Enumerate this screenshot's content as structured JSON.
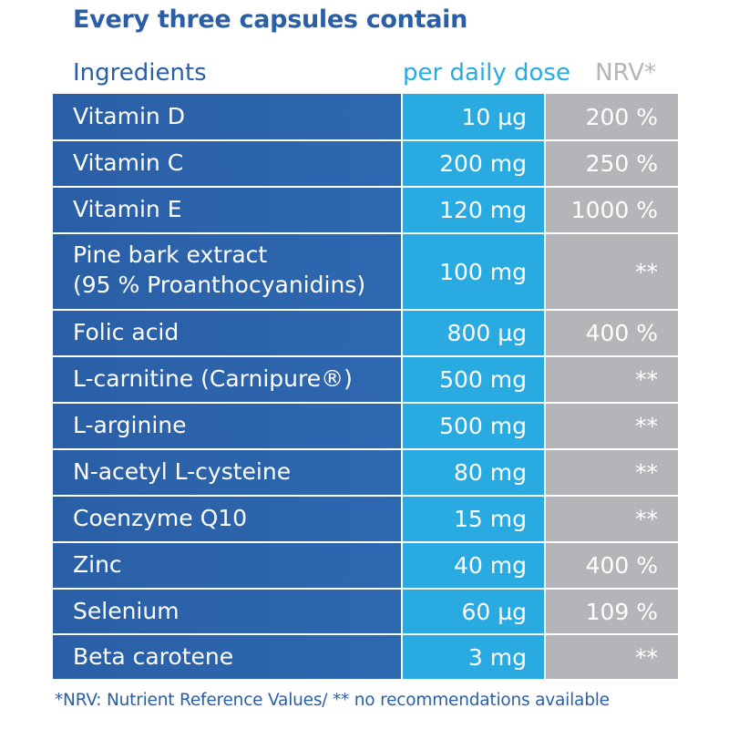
{
  "title": "Every three capsules contain",
  "headers": {
    "ingredients": "Ingredients",
    "dose": "per daily dose",
    "nrv": "NRV*"
  },
  "rows": [
    {
      "name": "Vitamin D",
      "dose": "10 µg",
      "nrv": "200 %"
    },
    {
      "name": "Vitamin C",
      "dose": "200 mg",
      "nrv": "250 %"
    },
    {
      "name": "Vitamin E",
      "dose": "120 mg",
      "nrv": "1000 %"
    },
    {
      "name": "Pine bark extract",
      "name_line2": "(95 % Proanthocyanidins)",
      "dose": "100 mg",
      "nrv": "**"
    },
    {
      "name": "Folic acid",
      "dose": "800 µg",
      "nrv": "400 %"
    },
    {
      "name": "L-carnitine (Carnipure®)",
      "dose": "500 mg",
      "nrv": "**"
    },
    {
      "name": "L-arginine",
      "dose": "500 mg",
      "nrv": "**"
    },
    {
      "name": "N-acetyl L-cysteine",
      "dose": "80 mg",
      "nrv": "**"
    },
    {
      "name": "Coenzyme Q10",
      "dose": "15 mg",
      "nrv": "**"
    },
    {
      "name": "Zinc",
      "dose": "40 mg",
      "nrv": "400 %"
    },
    {
      "name": "Selenium",
      "dose": "60 µg",
      "nrv": "109 %"
    },
    {
      "name": "Beta carotene",
      "dose": "3 mg",
      "nrv": "**"
    }
  ],
  "footnote": "*NRV: Nutrient Reference Values/ ** no recommendations available",
  "colors": {
    "dark_blue": "#2a5fa6",
    "light_blue": "#29aae1",
    "grey": "#b3b5b8"
  }
}
